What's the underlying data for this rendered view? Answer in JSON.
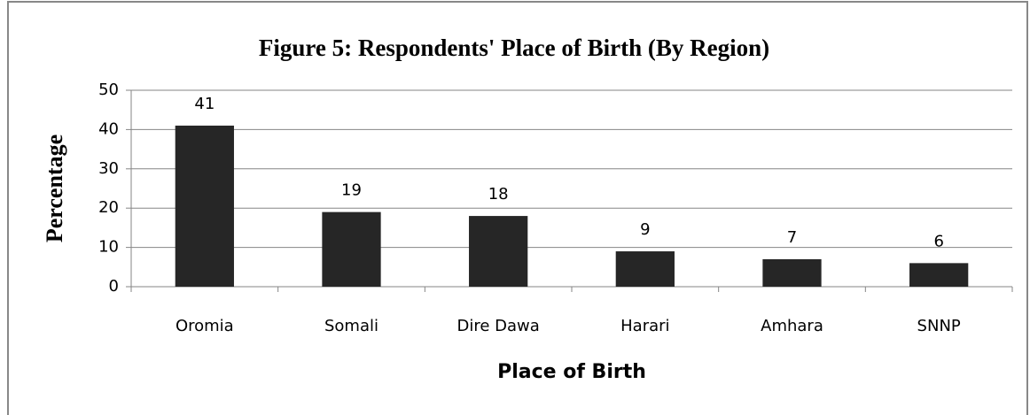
{
  "chart_data": {
    "type": "bar",
    "title": "Figure 5: Respondents' Place of Birth (By Region)",
    "x_label": "Place of Birth",
    "y_label": "Percentage",
    "categories": [
      "Oromia",
      "Somali",
      "Dire Dawa",
      "Harari",
      "Amhara",
      "SNNP"
    ],
    "values": [
      41,
      19,
      18,
      9,
      7,
      6
    ],
    "color": "#262626",
    "ylim": [
      0,
      50
    ],
    "yticks": [
      0,
      10,
      20,
      30,
      40,
      50
    ],
    "grid": true
  }
}
